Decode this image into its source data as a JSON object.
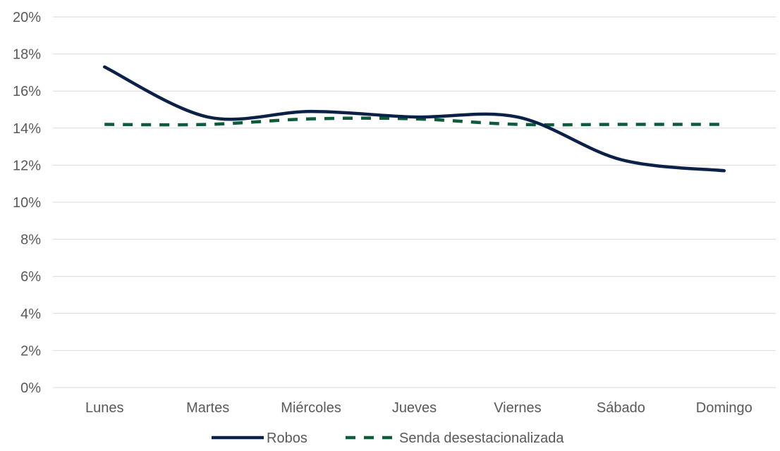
{
  "chart_data": {
    "type": "line",
    "title": "",
    "xlabel": "",
    "ylabel": "",
    "categories": [
      "Lunes",
      "Martes",
      "Miércoles",
      "Jueves",
      "Viernes",
      "Sábado",
      "Domingo"
    ],
    "ylim": [
      0,
      20
    ],
    "yticks": [
      "0%",
      "2%",
      "4%",
      "6%",
      "8%",
      "10%",
      "12%",
      "14%",
      "16%",
      "18%",
      "20%"
    ],
    "ytick_values": [
      0,
      2,
      4,
      6,
      8,
      10,
      12,
      14,
      16,
      18,
      20
    ],
    "grid": "horizontal",
    "legend_position": "bottom",
    "series": [
      {
        "name": "Robos",
        "values": [
          17.3,
          14.6,
          14.9,
          14.6,
          14.6,
          12.3,
          11.7
        ],
        "color": "#0b2147",
        "style": "solid",
        "smooth": true
      },
      {
        "name": "Senda desestacionalizada",
        "values": [
          14.2,
          14.2,
          14.5,
          14.5,
          14.2,
          14.2,
          14.2
        ],
        "color": "#0f5c3c",
        "style": "dashed",
        "smooth": true
      }
    ]
  }
}
